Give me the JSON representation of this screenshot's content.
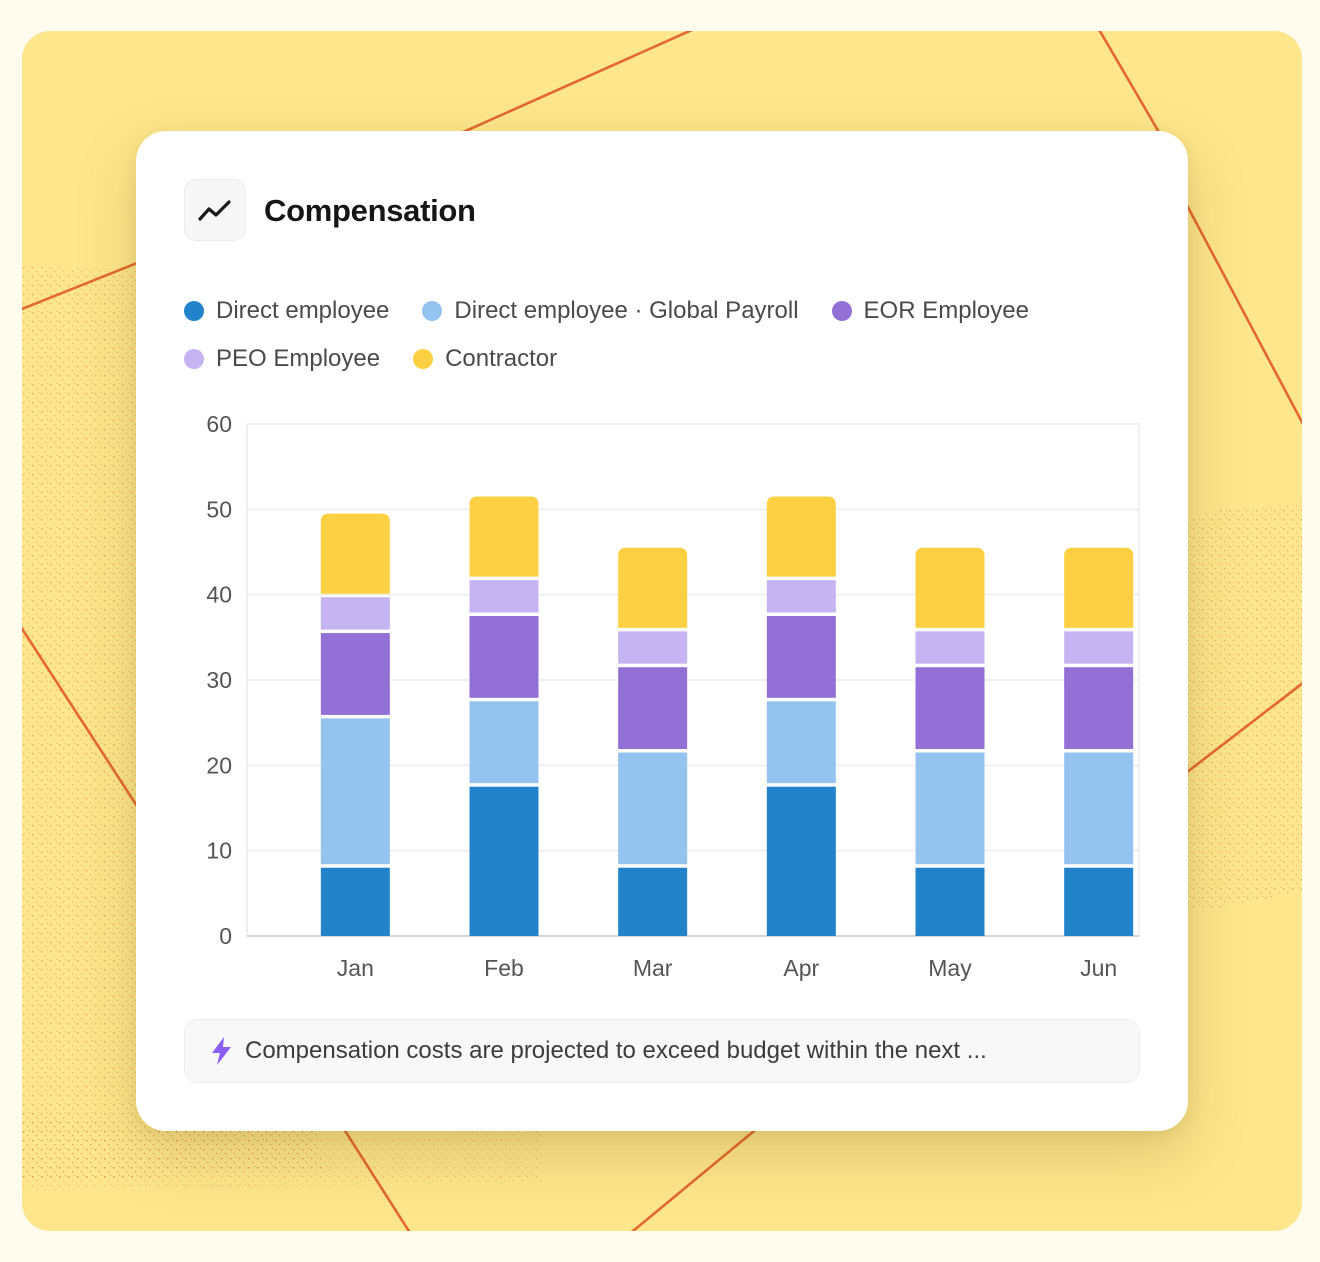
{
  "card": {
    "title": "Compensation",
    "title_icon": "trend-line-icon",
    "insight_icon": "lightning-icon",
    "insight_text": "Compensation costs are projected to exceed budget within the next ..."
  },
  "colors": {
    "background": "#fde68c",
    "accent_line": "#e4682f",
    "grid": "#ececec",
    "axis": "#d6d6d6",
    "insight_icon": "#8b5cf6"
  },
  "chart_data": {
    "type": "bar",
    "stacked": true,
    "title": "Compensation",
    "xlabel": "",
    "ylabel": "",
    "ylim": [
      0,
      60
    ],
    "yticks": [
      0,
      10,
      20,
      30,
      40,
      50,
      60
    ],
    "grid": true,
    "legend_position": "top",
    "categories": [
      "Jan",
      "Feb",
      "Mar",
      "Apr",
      "May",
      "Jun"
    ],
    "series": [
      {
        "name": "Direct employee",
        "color": "#2283cb",
        "values": [
          8,
          17.5,
          8,
          17.5,
          8,
          8
        ]
      },
      {
        "name": "Direct employee · Global Payroll",
        "color": "#94c3ef",
        "values": [
          17.5,
          10,
          13.5,
          10,
          13.5,
          13.5
        ]
      },
      {
        "name": "EOR Employee",
        "color": "#9270d6",
        "values": [
          10,
          10,
          10,
          10,
          10,
          10
        ]
      },
      {
        "name": "PEO Employee",
        "color": "#c6b3f1",
        "values": [
          4.2,
          4.2,
          4.2,
          4.2,
          4.2,
          4.2
        ]
      },
      {
        "name": "Contractor",
        "color": "#fdd044",
        "values": [
          9.8,
          9.8,
          9.8,
          9.8,
          9.8,
          9.8
        ]
      }
    ]
  }
}
